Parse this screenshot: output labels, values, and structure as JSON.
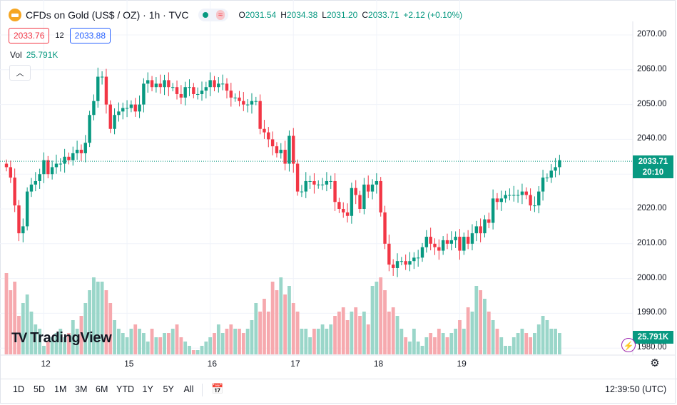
{
  "header": {
    "title": "CFDs on Gold (US$ / OZ) · 1h · TVC",
    "wave_label": "≈",
    "ohlc": [
      {
        "k": "O",
        "v": "2031.54"
      },
      {
        "k": "H",
        "v": "2034.38"
      },
      {
        "k": "L",
        "v": "2031.20"
      },
      {
        "k": "C",
        "v": "2033.71"
      },
      {
        "k": "",
        "v": "+2.12 (+0.10%)"
      }
    ]
  },
  "trade": {
    "sell": "2033.76",
    "spread": "12",
    "buy": "2033.88"
  },
  "volume_label": {
    "label": "Vol",
    "value": "25.791K"
  },
  "logo_text": "TradingView",
  "last_price": {
    "price": "2033.71",
    "countdown": "20:10"
  },
  "last_volume": "25.791K",
  "toolbar": {
    "timeframes": [
      "1D",
      "5D",
      "1M",
      "3M",
      "6M",
      "YTD",
      "1Y",
      "5Y",
      "All"
    ],
    "clock": "12:39:50 (UTC)"
  },
  "colors": {
    "up": "#089981",
    "down": "#f23645",
    "vol_up": "#9ad6c9",
    "vol_down": "#f6a9ae",
    "grid": "#f0f3fa"
  },
  "chart_data": {
    "type": "candlestick",
    "y_ticks": [
      "2070.00",
      "2060.00",
      "2050.00",
      "2040.00",
      "2030.00",
      "2020.00",
      "2010.00",
      "2000.00",
      "1990.00",
      "1980.00"
    ],
    "ylim": [
      1978,
      2073
    ],
    "x_ticks": [
      {
        "label": "12",
        "index": 9
      },
      {
        "label": "15",
        "index": 29
      },
      {
        "label": "16",
        "index": 49
      },
      {
        "label": "17",
        "index": 69
      },
      {
        "label": "18",
        "index": 89
      },
      {
        "label": "19",
        "index": 109
      }
    ],
    "grid": true,
    "closes": [
      2032,
      2029,
      2021,
      2013,
      2015,
      2025,
      2027,
      2028,
      2030,
      2034,
      2030,
      2032,
      2033,
      2033,
      2035,
      2034,
      2036,
      2037,
      2036,
      2039,
      2047,
      2051,
      2058,
      2058,
      2050,
      2043,
      2047,
      2048,
      2049,
      2049,
      2050,
      2048,
      2050,
      2056,
      2057,
      2055,
      2056,
      2055,
      2057,
      2055,
      2055,
      2053,
      2052,
      2055,
      2055,
      2053,
      2053,
      2054,
      2055,
      2057,
      2055,
      2056,
      2056,
      2054,
      2052,
      2052,
      2051,
      2050,
      2050,
      2051,
      2051,
      2043,
      2042,
      2040,
      2038,
      2036,
      2037,
      2033,
      2041,
      2033,
      2025,
      2025,
      2028,
      2028,
      2027,
      2027,
      2027,
      2028,
      2028,
      2022,
      2020,
      2019,
      2018,
      2026,
      2024,
      2020,
      2027,
      2025,
      2027,
      2028,
      2019,
      2010,
      2004,
      2003,
      2005,
      2005,
      2004,
      2005,
      2006,
      2006,
      2009,
      2012,
      2010,
      2009,
      2008,
      2011,
      2010,
      2011,
      2012,
      2008,
      2012,
      2010,
      2013,
      2015,
      2013,
      2017,
      2016,
      2023,
      2022,
      2023,
      2024,
      2024,
      2024,
      2024,
      2025,
      2024,
      2021,
      2021,
      2025,
      2029,
      2029,
      2031,
      2032,
      2034
    ],
    "volume_ratio": [
      0.95,
      0.75,
      0.85,
      0.45,
      0.6,
      0.7,
      0.5,
      0.35,
      0.3,
      0.1,
      0.15,
      0.2,
      0.25,
      0.3,
      0.2,
      0.25,
      0.4,
      0.3,
      0.45,
      0.6,
      0.75,
      0.9,
      0.85,
      0.85,
      0.75,
      0.6,
      0.4,
      0.3,
      0.25,
      0.2,
      0.3,
      0.35,
      0.3,
      0.25,
      0.15,
      0.3,
      0.2,
      0.2,
      0.25,
      0.25,
      0.3,
      0.35,
      0.2,
      0.15,
      0.1,
      0.05,
      0.05,
      0.1,
      0.15,
      0.2,
      0.25,
      0.35,
      0.25,
      0.3,
      0.35,
      0.3,
      0.3,
      0.25,
      0.3,
      0.4,
      0.6,
      0.5,
      0.65,
      0.5,
      0.85,
      0.75,
      0.9,
      0.7,
      0.8,
      0.6,
      0.5,
      0.3,
      0.3,
      0.2,
      0.3,
      0.3,
      0.35,
      0.3,
      0.35,
      0.45,
      0.5,
      0.55,
      0.4,
      0.5,
      0.55,
      0.45,
      0.5,
      0.35,
      0.8,
      0.85,
      0.9,
      0.75,
      0.5,
      0.55,
      0.45,
      0.3,
      0.2,
      0.15,
      0.3,
      0.15,
      0.1,
      0.2,
      0.25,
      0.2,
      0.3,
      0.25,
      0.2,
      0.25,
      0.3,
      0.4,
      0.3,
      0.55,
      0.5,
      0.8,
      0.75,
      0.65,
      0.5,
      0.4,
      0.3,
      0.2,
      0.1,
      0.1,
      0.2,
      0.25,
      0.3,
      0.25,
      0.2,
      0.25,
      0.35,
      0.45,
      0.4,
      0.3,
      0.3,
      0.25
    ]
  }
}
